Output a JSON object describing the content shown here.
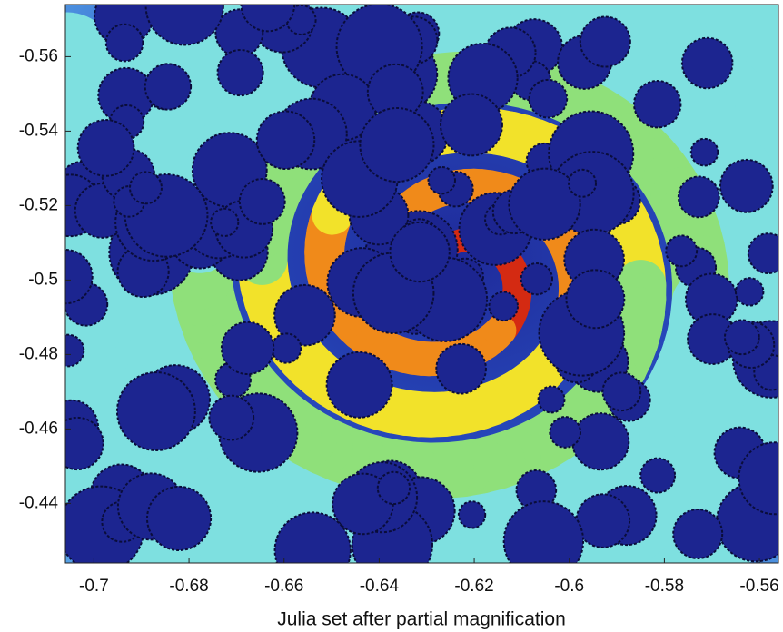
{
  "chart_data": {
    "type": "image",
    "x_label": "Julia set after partial magnification",
    "xlim": [
      -0.706,
      -0.556
    ],
    "xticks": [
      -0.7,
      -0.68,
      -0.66,
      -0.64,
      -0.62,
      -0.6,
      -0.58,
      -0.56
    ],
    "ylim": [
      -0.574,
      -0.424
    ],
    "y_reversed": true,
    "yticks": [
      -0.56,
      -0.54,
      -0.52,
      -0.5,
      -0.48,
      -0.46,
      -0.44
    ]
  }
}
